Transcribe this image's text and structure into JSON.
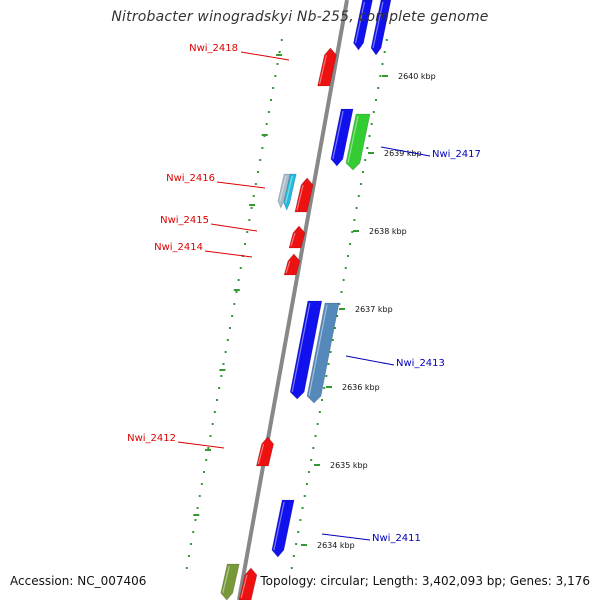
{
  "title": "Nitrobacter winogradskyi Nb-255, complete genome",
  "footer": {
    "accession": "Accession: NC_007406",
    "summary": "Topology: circular; Length: 3,402,093 bp; Genes: 3,176"
  },
  "colors": {
    "forward_gene": "#ee1111",
    "reverse_gene": "#1111ee",
    "steelblue_gene": "#5588bb",
    "green_gene": "#33cc33",
    "cyan_gene": "#22bbdd",
    "olive_gene": "#77993a",
    "backbone": "#888888",
    "dotted_track": "#339933",
    "forward_label": "#dd0000",
    "reverse_label": "#0000bb"
  },
  "scale_ticks": [
    {
      "label": "2640 kbp"
    },
    {
      "label": "2639 kbp"
    },
    {
      "label": "2638 kbp"
    },
    {
      "label": "2637 kbp"
    },
    {
      "label": "2636 kbp"
    },
    {
      "label": "2635 kbp"
    },
    {
      "label": "2634 kbp"
    }
  ],
  "gene_labels": [
    {
      "name": "Nwi_2418",
      "strand": "forward"
    },
    {
      "name": "Nwi_2417",
      "strand": "reverse"
    },
    {
      "name": "Nwi_2416",
      "strand": "forward"
    },
    {
      "name": "Nwi_2415",
      "strand": "forward"
    },
    {
      "name": "Nwi_2414",
      "strand": "forward"
    },
    {
      "name": "Nwi_2413",
      "strand": "reverse"
    },
    {
      "name": "Nwi_2412",
      "strand": "forward"
    },
    {
      "name": "Nwi_2411",
      "strand": "reverse"
    }
  ]
}
